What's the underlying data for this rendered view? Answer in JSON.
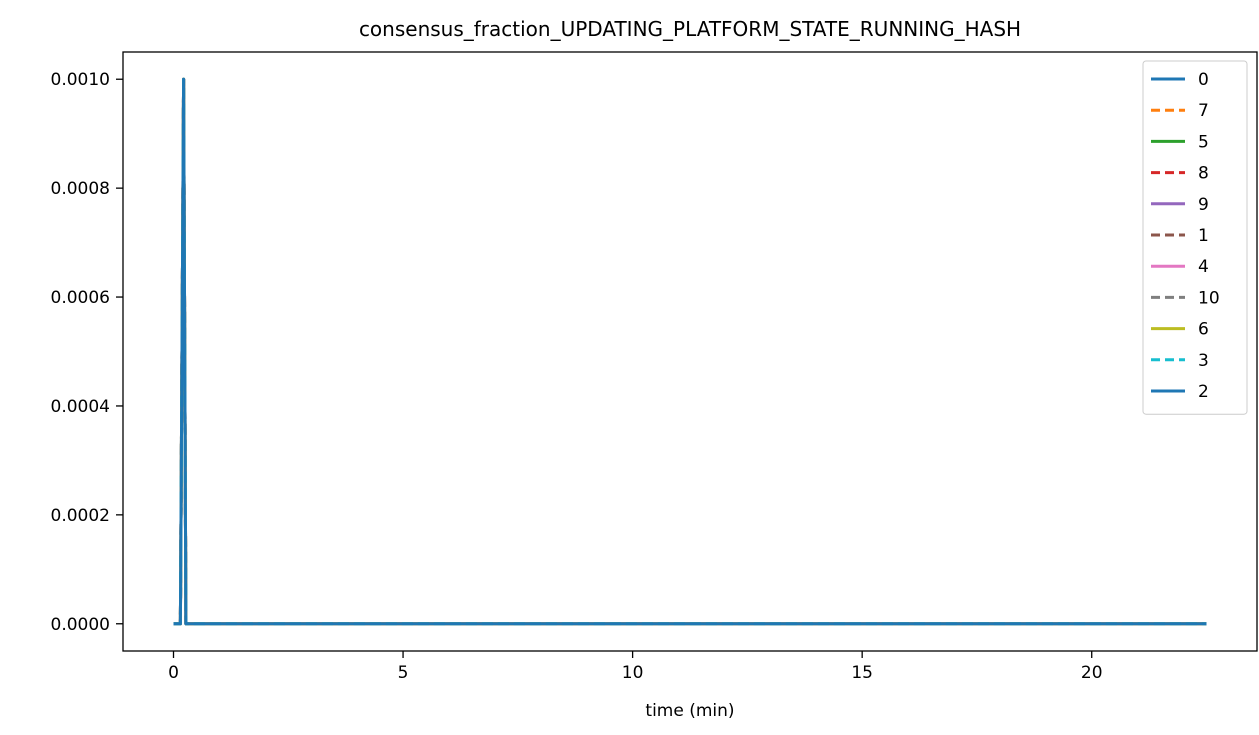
{
  "chart_data": {
    "type": "line",
    "title": "consensus_fraction_UPDATING_PLATFORM_STATE_RUNNING_HASH",
    "xlabel": "time (min)",
    "ylabel": "",
    "xlim": [
      -1.1,
      23.6
    ],
    "ylim": [
      -5e-05,
      0.00105
    ],
    "xticks": [
      0,
      5,
      10,
      15,
      20
    ],
    "xtick_labels": [
      "0",
      "5",
      "10",
      "15",
      "20"
    ],
    "yticks": [
      0,
      0.0002,
      0.0004,
      0.0006,
      0.0008,
      0.001
    ],
    "ytick_labels": [
      "0.0000",
      "0.0002",
      "0.0004",
      "0.0006",
      "0.0008",
      "0.0010"
    ],
    "grid": false,
    "legend_position": "upper right",
    "series": [
      {
        "name": "0",
        "color": "#1f77b4",
        "dashed": false,
        "x": [
          0,
          0.1,
          0.15,
          0.22,
          0.27,
          0.32,
          0.4,
          22.5
        ],
        "y": [
          0,
          0,
          0,
          0.001,
          0,
          0,
          0,
          0
        ]
      },
      {
        "name": "7",
        "color": "#ff7f0e",
        "dashed": true,
        "x": [
          0,
          0.1,
          0.15,
          0.22,
          0.27,
          0.32,
          0.4,
          22.5
        ],
        "y": [
          0,
          0,
          0,
          0.001,
          0,
          0,
          0,
          0
        ]
      },
      {
        "name": "5",
        "color": "#2ca02c",
        "dashed": false,
        "x": [
          0,
          0.1,
          0.15,
          0.22,
          0.27,
          0.32,
          0.4,
          22.5
        ],
        "y": [
          0,
          0,
          0,
          0.001,
          0,
          0,
          0,
          0
        ]
      },
      {
        "name": "8",
        "color": "#d62728",
        "dashed": true,
        "x": [
          0,
          0.1,
          0.15,
          0.22,
          0.27,
          0.32,
          0.4,
          22.5
        ],
        "y": [
          0,
          0,
          0,
          0.001,
          0,
          0,
          0,
          0
        ]
      },
      {
        "name": "9",
        "color": "#9467bd",
        "dashed": false,
        "x": [
          0,
          0.1,
          0.15,
          0.22,
          0.27,
          0.32,
          0.4,
          22.5
        ],
        "y": [
          0,
          0,
          0,
          0.001,
          0,
          0,
          0,
          0
        ]
      },
      {
        "name": "1",
        "color": "#8c564b",
        "dashed": true,
        "x": [
          0,
          0.1,
          0.15,
          0.22,
          0.27,
          0.32,
          0.4,
          22.5
        ],
        "y": [
          0,
          0,
          0,
          0.001,
          0,
          0,
          0,
          0
        ]
      },
      {
        "name": "4",
        "color": "#e377c2",
        "dashed": false,
        "x": [
          0,
          0.1,
          0.15,
          0.22,
          0.27,
          0.32,
          0.4,
          22.5
        ],
        "y": [
          0,
          0,
          0,
          0.001,
          0,
          0,
          0,
          0
        ]
      },
      {
        "name": "10",
        "color": "#7f7f7f",
        "dashed": true,
        "x": [
          0,
          0.1,
          0.15,
          0.22,
          0.27,
          0.32,
          0.4,
          22.5
        ],
        "y": [
          0,
          0,
          0,
          0.001,
          0,
          0,
          0,
          0
        ]
      },
      {
        "name": "6",
        "color": "#bcbd22",
        "dashed": false,
        "x": [
          0,
          0.1,
          0.15,
          0.22,
          0.27,
          0.32,
          0.4,
          22.5
        ],
        "y": [
          0,
          0,
          0,
          0.001,
          0,
          0,
          0,
          0
        ]
      },
      {
        "name": "3",
        "color": "#17becf",
        "dashed": true,
        "x": [
          0,
          0.1,
          0.15,
          0.22,
          0.27,
          0.32,
          0.4,
          22.5
        ],
        "y": [
          0,
          0,
          0,
          0.001,
          0,
          0,
          0,
          0
        ]
      },
      {
        "name": "2",
        "color": "#1f77b4",
        "dashed": false,
        "x": [
          0,
          0.1,
          0.15,
          0.22,
          0.27,
          0.32,
          0.4,
          22.5
        ],
        "y": [
          0,
          0,
          0,
          0.001,
          0,
          0,
          0,
          0
        ]
      }
    ]
  }
}
